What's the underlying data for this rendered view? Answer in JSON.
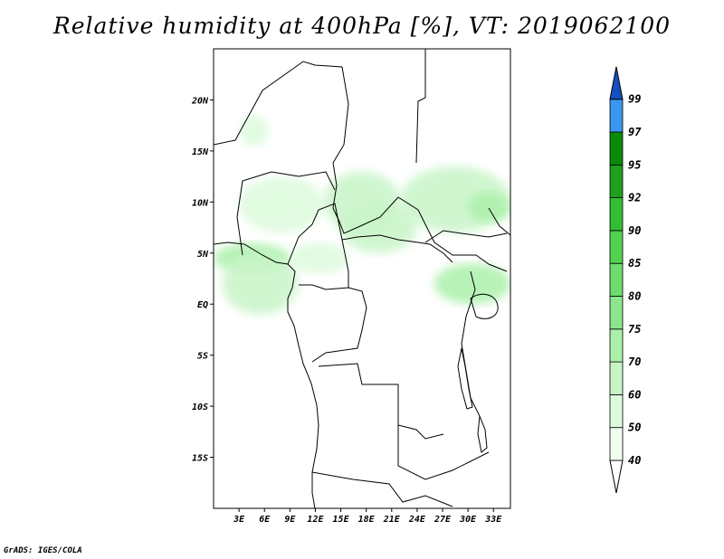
{
  "title": "Relative humidity at 400hPa [%], VT: 2019062100",
  "credit": "GrADS: IGES/COLA",
  "map": {
    "lon_range": [
      0,
      35
    ],
    "lat_range": [
      -20,
      25
    ],
    "x_ticks": [
      "3E",
      "6E",
      "9E",
      "12E",
      "15E",
      "18E",
      "21E",
      "24E",
      "27E",
      "30E",
      "33E"
    ],
    "x_tick_values": [
      3,
      6,
      9,
      12,
      15,
      18,
      21,
      24,
      27,
      30,
      33
    ],
    "y_ticks": [
      "20N",
      "15N",
      "10N",
      "5N",
      "EQ",
      "5S",
      "10S",
      "15S"
    ],
    "y_tick_values": [
      20,
      15,
      10,
      5,
      0,
      -5,
      -10,
      -15
    ]
  },
  "colorbar": {
    "levels": [
      "40",
      "50",
      "60",
      "70",
      "75",
      "80",
      "85",
      "90",
      "92",
      "95",
      "97",
      "99"
    ],
    "colors": [
      "#f0fff0",
      "#dcfadc",
      "#c8f5c8",
      "#aaf0aa",
      "#8ce68c",
      "#6edc6e",
      "#50d250",
      "#32be32",
      "#1ea01e",
      "#0a8c0a",
      "#3c96f0",
      "#1e64dc",
      "#1450be"
    ]
  },
  "humidity_areas": [
    {
      "name": "humidity-patch-sahel-west",
      "level": 1,
      "lon": [
        3,
        6.5
      ],
      "lat": [
        15.5,
        18.5
      ]
    },
    {
      "name": "humidity-patch-nigeria",
      "level": 1,
      "lon": [
        3,
        13
      ],
      "lat": [
        7,
        12.5
      ]
    },
    {
      "name": "humidity-patch-gulf-guinea",
      "level": 3,
      "lon": [
        0,
        9
      ],
      "lat": [
        3,
        6
      ]
    },
    {
      "name": "humidity-patch-coast",
      "level": 2,
      "lon": [
        1,
        10
      ],
      "lat": [
        -1,
        5
      ]
    },
    {
      "name": "humidity-patch-chad",
      "level": 2,
      "lon": [
        13,
        22
      ],
      "lat": [
        7,
        13
      ]
    },
    {
      "name": "humidity-patch-car",
      "level": 2,
      "lon": [
        15,
        24
      ],
      "lat": [
        5,
        10
      ]
    },
    {
      "name": "humidity-patch-sudan",
      "level": 2,
      "lon": [
        22,
        35
      ],
      "lat": [
        7,
        13.5
      ]
    },
    {
      "name": "humidity-patch-ethiopia",
      "level": 3,
      "lon": [
        30,
        35
      ],
      "lat": [
        8,
        11
      ]
    },
    {
      "name": "humidity-patch-lakes",
      "level": 3,
      "lon": [
        26,
        35
      ],
      "lat": [
        0,
        4
      ]
    },
    {
      "name": "humidity-patch-cameroon",
      "level": 1,
      "lon": [
        9,
        16
      ],
      "lat": [
        3,
        6
      ]
    }
  ]
}
